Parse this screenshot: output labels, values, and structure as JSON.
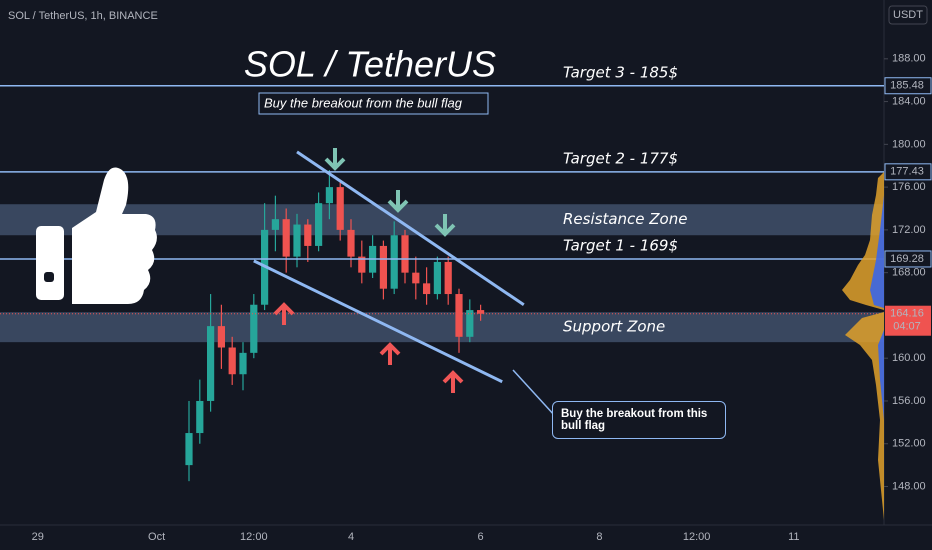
{
  "chart_data": {
    "type": "candlestick",
    "title": "SOL / TetherUS, 1h, BINANCE",
    "currency": "USDT",
    "headline": "SOL / TetherUS",
    "note": "Buy the breakout from the bull flag",
    "callout": "Buy the breakout from this bull flag",
    "categories": [
      null,
      null,
      null,
      "29",
      null,
      null,
      null,
      null,
      null,
      null,
      null,
      null,
      null,
      null,
      "Oct",
      null,
      null,
      null,
      null,
      null,
      null,
      null,
      null,
      "12:00",
      null,
      null,
      null,
      null,
      null,
      null,
      null,
      null,
      "4",
      null,
      null,
      null,
      null,
      null,
      null,
      null,
      null,
      null,
      null,
      null,
      "6",
      null,
      null,
      null,
      null,
      null,
      null,
      null,
      null,
      null,
      null,
      "8",
      null,
      null,
      null,
      null,
      null,
      null,
      null,
      null,
      "12:00",
      null,
      null,
      null,
      null,
      null,
      null,
      null,
      null,
      "11",
      null,
      null,
      null,
      null,
      null,
      null,
      null,
      null
    ],
    "series": {
      "open": [
        null,
        null,
        null,
        null,
        null,
        null,
        null,
        null,
        null,
        null,
        null,
        null,
        null,
        null,
        null,
        null,
        null,
        150,
        153,
        156,
        163,
        161,
        158.5,
        160.5,
        165,
        172,
        173,
        169.5,
        172.5,
        170.5,
        174.5,
        176,
        172,
        169.5,
        168,
        170.5,
        166.5,
        171.5,
        168,
        167,
        166,
        169,
        166,
        162,
        164.5,
        null,
        null,
        null,
        null,
        null,
        null,
        null,
        null,
        null,
        null,
        null,
        null,
        null,
        null,
        null,
        null,
        null,
        null,
        null,
        null,
        null,
        null,
        null,
        null,
        null,
        null,
        null,
        null,
        null,
        null,
        null,
        null,
        null,
        null,
        null,
        null,
        null
      ],
      "high": [
        null,
        null,
        null,
        null,
        null,
        null,
        null,
        null,
        null,
        null,
        null,
        null,
        null,
        null,
        null,
        null,
        null,
        156,
        158,
        166,
        165,
        162,
        161.5,
        166,
        174.5,
        175.2,
        174,
        173.5,
        173,
        175.5,
        177.6,
        176.5,
        173,
        171,
        171.5,
        171,
        172.8,
        172,
        169.5,
        168.5,
        169.5,
        169.5,
        166.5,
        165.5,
        165,
        null,
        null,
        null,
        null,
        null,
        null,
        null,
        null,
        null,
        null,
        null,
        null,
        null,
        null,
        null,
        null,
        null,
        null,
        null,
        null,
        null,
        null,
        null,
        null,
        null,
        null,
        null,
        null,
        null,
        null,
        null,
        null,
        null,
        null,
        null,
        null,
        null
      ],
      "low": [
        null,
        null,
        null,
        null,
        null,
        null,
        null,
        null,
        null,
        null,
        null,
        null,
        null,
        null,
        null,
        null,
        null,
        148.5,
        152,
        155,
        159,
        157.5,
        157,
        160,
        164.5,
        170,
        168,
        168.5,
        169,
        170,
        173,
        171,
        168.5,
        167,
        167.5,
        165.5,
        166,
        167,
        165.5,
        165,
        165.5,
        165,
        160.5,
        161.5,
        163.5,
        null,
        null,
        null,
        null,
        null,
        null,
        null,
        null,
        null,
        null,
        null,
        null,
        null,
        null,
        null,
        null,
        null,
        null,
        null,
        null,
        null,
        null,
        null,
        null,
        null,
        null,
        null,
        null,
        null,
        null,
        null,
        null,
        null,
        null,
        null,
        null,
        null
      ],
      "close": [
        null,
        null,
        null,
        null,
        null,
        null,
        null,
        null,
        null,
        null,
        null,
        null,
        null,
        null,
        null,
        null,
        null,
        153,
        156,
        163,
        161,
        158.5,
        160.5,
        165,
        172,
        173,
        169.5,
        172.5,
        170.5,
        174.5,
        176,
        172,
        169.5,
        168,
        170.5,
        166.5,
        171.5,
        168,
        167,
        166,
        169,
        166,
        162,
        164.5,
        164.16,
        null,
        null,
        null,
        null,
        null,
        null,
        null,
        null,
        null,
        null,
        null,
        null,
        null,
        null,
        null,
        null,
        null,
        null,
        null,
        null,
        null,
        null,
        null,
        null,
        null,
        null,
        null,
        null,
        null,
        null,
        null,
        null,
        null,
        null,
        null,
        null,
        null
      ]
    },
    "up_color": "#26a69a",
    "down_color": "#ef5350",
    "line_color": "#8fb8f2",
    "ylim": [
      144.4,
      193.5
    ],
    "yticks": [
      {
        "value": 148,
        "label": "148.00"
      },
      {
        "value": 152,
        "label": "152.00"
      },
      {
        "value": 156,
        "label": "156.00"
      },
      {
        "value": 160,
        "label": "160.00"
      },
      {
        "value": 168,
        "label": "168.00"
      },
      {
        "value": 172,
        "label": "172.00"
      },
      {
        "value": 176,
        "label": "176.00"
      },
      {
        "value": 180,
        "label": "180.00"
      },
      {
        "value": 184,
        "label": "184.00"
      },
      {
        "value": 188,
        "label": "188.00"
      }
    ],
    "last_price": 164.16,
    "countdown": "04:07",
    "levels": [
      {
        "name": "Target 3 - 185$",
        "value": 185.48
      },
      {
        "name": "Target 2 - 177$",
        "value": 177.43
      },
      {
        "name": "Target 1 - 169$",
        "value": 169.28
      }
    ],
    "zones": [
      {
        "name": "Resistance Zone",
        "range": [
          171.5,
          174.4
        ]
      },
      {
        "name": "Support Zone",
        "range": [
          161.5,
          164.3
        ]
      }
    ],
    "trendlines": [
      {
        "x": [
          27,
          48
        ],
        "y": [
          179.3,
          165
        ]
      },
      {
        "x": [
          23,
          46
        ],
        "y": [
          169.1,
          157.8
        ]
      }
    ]
  }
}
